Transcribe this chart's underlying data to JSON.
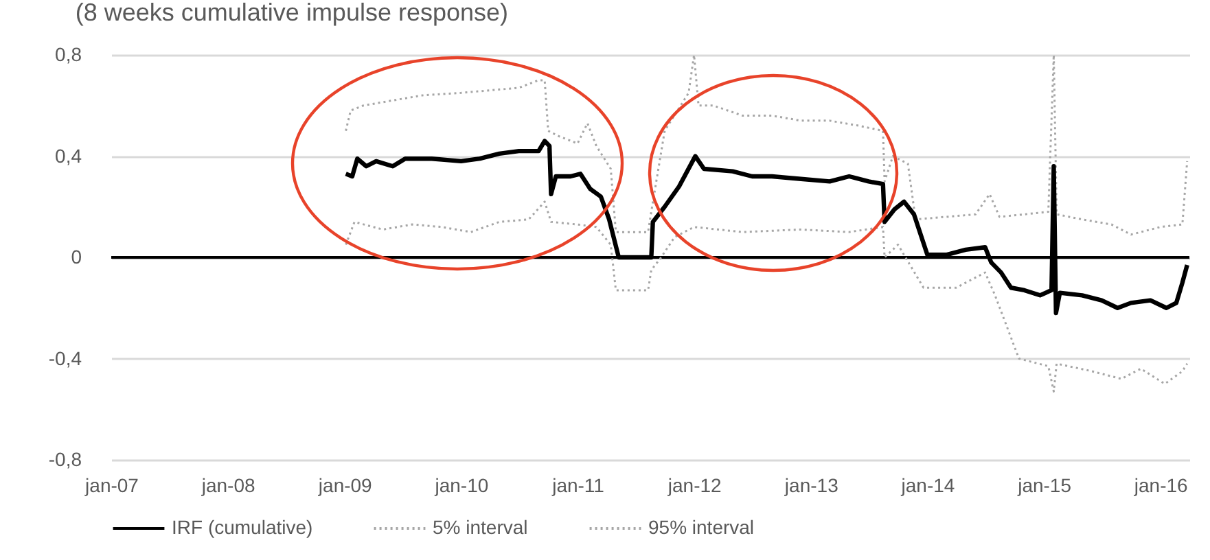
{
  "chart_data": {
    "type": "line",
    "title": "(8 weeks cumulative impulse response)",
    "xlim": [
      "2007-01-01",
      "2016-04-01"
    ],
    "xticks": [
      {
        "value": "2007-01-01",
        "label": "jan-07"
      },
      {
        "value": "2008-01-01",
        "label": "jan-08"
      },
      {
        "value": "2009-01-01",
        "label": "jan-09"
      },
      {
        "value": "2010-01-01",
        "label": "jan-10"
      },
      {
        "value": "2011-01-01",
        "label": "jan-11"
      },
      {
        "value": "2012-01-01",
        "label": "jan-12"
      },
      {
        "value": "2013-01-01",
        "label": "jan-13"
      },
      {
        "value": "2014-01-01",
        "label": "jan-14"
      },
      {
        "value": "2015-01-01",
        "label": "jan-15"
      },
      {
        "value": "2016-01-01",
        "label": "jan-16"
      }
    ],
    "ylim": [
      -0.8,
      0.8
    ],
    "yticks": [
      {
        "value": -0.8,
        "label": "-0,8"
      },
      {
        "value": -0.4,
        "label": "-0,4"
      },
      {
        "value": 0,
        "label": "0"
      },
      {
        "value": 0.4,
        "label": "0,4"
      },
      {
        "value": 0.8,
        "label": "0,8"
      }
    ],
    "grid": "y",
    "legend": "bottom",
    "ref_lines": [
      {
        "axis": "y",
        "value": 0,
        "color": "#000000"
      }
    ],
    "series": [
      {
        "name": "IRF (cumulative)",
        "color": "#000000",
        "line_style": "solid",
        "x": [
          "2009-01-05",
          "2009-01-25",
          "2009-02-10",
          "2009-03-10",
          "2009-04-10",
          "2009-06-01",
          "2009-07-10",
          "2009-10-01",
          "2010-01-01",
          "2010-03-01",
          "2010-05-01",
          "2010-07-01",
          "2010-09-01",
          "2010-09-20",
          "2010-10-05",
          "2010-10-10",
          "2010-10-25",
          "2010-12-10",
          "2011-01-10",
          "2011-02-10",
          "2011-03-15",
          "2011-04-10",
          "2011-05-10",
          "2011-08-20",
          "2011-08-25",
          "2011-10-01",
          "2011-11-15",
          "2012-01-05",
          "2012-02-01",
          "2012-05-01",
          "2012-07-01",
          "2012-09-01",
          "2012-12-01",
          "2013-03-01",
          "2013-05-01",
          "2013-07-01",
          "2013-08-15",
          "2013-08-20",
          "2013-09-20",
          "2013-10-20",
          "2013-11-20",
          "2014-01-01",
          "2014-03-01",
          "2014-05-01",
          "2014-07-01",
          "2014-07-20",
          "2014-08-20",
          "2014-09-20",
          "2014-11-01",
          "2014-12-20",
          "2015-01-25",
          "2015-02-01",
          "2015-02-08",
          "2015-02-20",
          "2015-05-01",
          "2015-07-01",
          "2015-08-20",
          "2015-10-01",
          "2015-12-01",
          "2016-01-20",
          "2016-02-20",
          "2016-03-10",
          "2016-03-25"
        ],
        "values": [
          0.33,
          0.32,
          0.39,
          0.36,
          0.38,
          0.36,
          0.39,
          0.39,
          0.38,
          0.39,
          0.41,
          0.42,
          0.42,
          0.46,
          0.44,
          0.25,
          0.32,
          0.32,
          0.33,
          0.27,
          0.24,
          0.15,
          0,
          0,
          0.14,
          0.2,
          0.28,
          0.4,
          0.35,
          0.34,
          0.32,
          0.32,
          0.31,
          0.3,
          0.32,
          0.3,
          0.29,
          0.14,
          0.19,
          0.22,
          0.17,
          0.01,
          0.01,
          0.03,
          0.04,
          -0.02,
          -0.06,
          -0.12,
          -0.13,
          -0.15,
          -0.13,
          0.36,
          -0.22,
          -0.14,
          -0.15,
          -0.17,
          -0.2,
          -0.18,
          -0.17,
          -0.2,
          -0.18,
          -0.1,
          -0.03
        ]
      },
      {
        "name": "5% interval",
        "color": "#a6a6a6",
        "line_style": "dotted",
        "x": [
          "2009-01-05",
          "2009-02-01",
          "2009-05-01",
          "2009-08-01",
          "2009-11-01",
          "2010-02-01",
          "2010-05-01",
          "2010-08-01",
          "2010-09-20",
          "2010-10-10",
          "2011-01-01",
          "2011-03-01",
          "2011-04-15",
          "2011-05-01",
          "2011-08-10",
          "2011-08-20",
          "2011-09-20",
          "2011-11-01",
          "2012-01-01",
          "2012-06-01",
          "2012-12-01",
          "2013-05-01",
          "2013-08-15",
          "2013-08-20",
          "2013-10-01",
          "2013-12-20",
          "2014-04-01",
          "2014-07-01",
          "2014-08-01",
          "2014-09-15",
          "2014-10-15",
          "2015-01-15",
          "2015-02-01",
          "2015-02-10",
          "2015-06-01",
          "2015-09-01",
          "2015-11-01",
          "2016-01-15",
          "2016-03-10",
          "2016-03-25"
        ],
        "values": [
          0.05,
          0.14,
          0.11,
          0.13,
          0.12,
          0.1,
          0.14,
          0.15,
          0.22,
          0.14,
          0.13,
          0.12,
          0.05,
          -0.13,
          -0.13,
          -0.05,
          0,
          0.08,
          0.12,
          0.1,
          0.11,
          0.1,
          0.12,
          0,
          0.05,
          -0.12,
          -0.12,
          -0.06,
          -0.15,
          -0.3,
          -0.4,
          -0.43,
          -0.53,
          -0.42,
          -0.45,
          -0.48,
          -0.44,
          -0.5,
          -0.45,
          -0.42
        ]
      },
      {
        "name": "95% interval",
        "color": "#a6a6a6",
        "line_style": "dotted",
        "x": [
          "2009-01-05",
          "2009-01-20",
          "2009-03-01",
          "2009-06-01",
          "2009-09-01",
          "2010-01-01",
          "2010-04-01",
          "2010-07-01",
          "2010-09-01",
          "2010-09-20",
          "2010-10-01",
          "2010-11-01",
          "2011-01-01",
          "2011-02-01",
          "2011-03-01",
          "2011-04-15",
          "2011-05-01",
          "2011-08-10",
          "2011-08-20",
          "2011-10-01",
          "2011-12-15",
          "2012-01-01",
          "2012-01-15",
          "2012-03-01",
          "2012-06-01",
          "2012-09-01",
          "2012-12-01",
          "2013-03-01",
          "2013-06-01",
          "2013-08-15",
          "2013-08-20",
          "2013-09-15",
          "2013-11-01",
          "2013-11-25",
          "2014-03-01",
          "2014-06-01",
          "2014-07-15",
          "2014-08-15",
          "2014-11-01",
          "2015-01-15",
          "2015-02-01",
          "2015-02-10",
          "2015-05-01",
          "2015-08-01",
          "2015-10-01",
          "2016-01-01",
          "2016-03-10",
          "2016-03-25"
        ],
        "values": [
          0.5,
          0.58,
          0.6,
          0.62,
          0.64,
          0.65,
          0.66,
          0.67,
          0.7,
          0.7,
          0.5,
          0.48,
          0.45,
          0.53,
          0.44,
          0.35,
          0.1,
          0.1,
          0.18,
          0.5,
          0.65,
          0.8,
          0.6,
          0.6,
          0.56,
          0.56,
          0.54,
          0.54,
          0.52,
          0.5,
          0.3,
          0.4,
          0.37,
          0.15,
          0.16,
          0.17,
          0.25,
          0.16,
          0.17,
          0.18,
          0.8,
          0.17,
          0.15,
          0.13,
          0.09,
          0.12,
          0.13,
          0.38
        ]
      }
    ]
  }
}
